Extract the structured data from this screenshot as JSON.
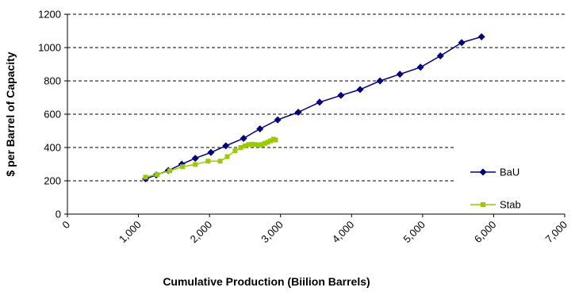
{
  "chart_data": {
    "type": "line",
    "title": "",
    "xlabel": "Cumulative Production (Biilion Barrels)",
    "ylabel": "$ per Barrel of Capacity",
    "xlim": [
      0,
      7000
    ],
    "ylim": [
      0,
      1200
    ],
    "x_ticks": [
      0,
      1000,
      2000,
      3000,
      4000,
      5000,
      6000,
      7000
    ],
    "x_tick_labels": [
      "0",
      "1,000",
      "2,000",
      "3,000",
      "4,000",
      "5,000",
      "6,000",
      "7,000"
    ],
    "y_ticks": [
      0,
      200,
      400,
      600,
      800,
      1000,
      1200
    ],
    "y_tick_labels": [
      "0",
      "200",
      "400",
      "600",
      "800",
      "1000",
      "1200"
    ],
    "grid": "horizontal dashed",
    "legend_position": "right",
    "series": [
      {
        "name": "BaU",
        "color": "#000080",
        "marker": "diamond",
        "points": [
          [
            1100,
            212
          ],
          [
            1250,
            235
          ],
          [
            1420,
            262
          ],
          [
            1610,
            300
          ],
          [
            1800,
            335
          ],
          [
            2020,
            370
          ],
          [
            2230,
            410
          ],
          [
            2480,
            455
          ],
          [
            2710,
            512
          ],
          [
            2960,
            566
          ],
          [
            3250,
            612
          ],
          [
            3550,
            672
          ],
          [
            3850,
            713
          ],
          [
            4120,
            748
          ],
          [
            4400,
            800
          ],
          [
            4680,
            840
          ],
          [
            4970,
            882
          ],
          [
            5250,
            950
          ],
          [
            5550,
            1030
          ],
          [
            5830,
            1065
          ]
        ]
      },
      {
        "name": "Stab",
        "color": "#99CC00",
        "marker": "square",
        "points": [
          [
            1100,
            222
          ],
          [
            1260,
            238
          ],
          [
            1440,
            260
          ],
          [
            1620,
            285
          ],
          [
            1800,
            298
          ],
          [
            1980,
            318
          ],
          [
            2150,
            318
          ],
          [
            2250,
            345
          ],
          [
            2360,
            380
          ],
          [
            2440,
            400
          ],
          [
            2500,
            410
          ],
          [
            2550,
            418
          ],
          [
            2600,
            420
          ],
          [
            2650,
            418
          ],
          [
            2700,
            415
          ],
          [
            2740,
            418
          ],
          [
            2780,
            425
          ],
          [
            2820,
            432
          ],
          [
            2860,
            440
          ],
          [
            2900,
            450
          ],
          [
            2930,
            445
          ]
        ]
      }
    ]
  }
}
